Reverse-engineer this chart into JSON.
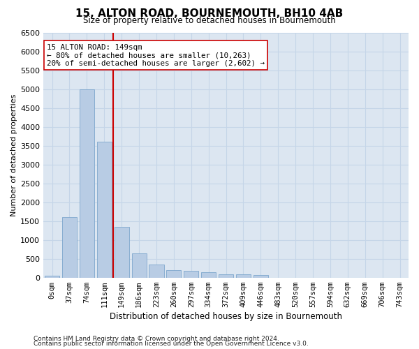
{
  "title": "15, ALTON ROAD, BOURNEMOUTH, BH10 4AB",
  "subtitle": "Size of property relative to detached houses in Bournemouth",
  "xlabel": "Distribution of detached houses by size in Bournemouth",
  "ylabel": "Number of detached properties",
  "footnote1": "Contains HM Land Registry data © Crown copyright and database right 2024.",
  "footnote2": "Contains public sector information licensed under the Open Government Licence v3.0.",
  "annotation_line1": "15 ALTON ROAD: 149sqm",
  "annotation_line2": "← 80% of detached houses are smaller (10,263)",
  "annotation_line3": "20% of semi-detached houses are larger (2,602) →",
  "bar_color": "#b8cce4",
  "bar_edge_color": "#7da6cd",
  "vline_color": "#cc0000",
  "vline_index": 3.5,
  "plot_bg_color": "#dce6f1",
  "grid_color": "#c5d5e8",
  "categories": [
    "0sqm",
    "37sqm",
    "74sqm",
    "111sqm",
    "149sqm",
    "186sqm",
    "223sqm",
    "260sqm",
    "297sqm",
    "334sqm",
    "372sqm",
    "409sqm",
    "446sqm",
    "483sqm",
    "520sqm",
    "557sqm",
    "594sqm",
    "632sqm",
    "669sqm",
    "706sqm",
    "743sqm"
  ],
  "values": [
    50,
    1600,
    5000,
    3600,
    1350,
    640,
    350,
    200,
    175,
    145,
    90,
    80,
    60,
    0,
    0,
    0,
    0,
    0,
    0,
    0,
    0
  ],
  "ylim_max": 6500,
  "yticks": [
    0,
    500,
    1000,
    1500,
    2000,
    2500,
    3000,
    3500,
    4000,
    4500,
    5000,
    5500,
    6000,
    6500
  ]
}
